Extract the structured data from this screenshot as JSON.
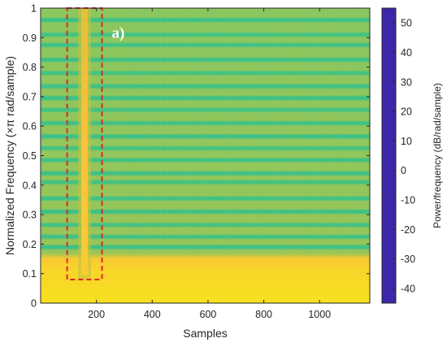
{
  "chart_data": {
    "type": "heatmap",
    "title": "",
    "xlabel": "Samples",
    "ylabel": "Normalized Frequency  (×π rad/sample)",
    "xlim": [
      0,
      1180
    ],
    "ylim": [
      0,
      1
    ],
    "xticks": [
      200,
      400,
      600,
      800,
      1000
    ],
    "yticks": [
      0,
      0.1,
      0.2,
      0.3,
      0.4,
      0.5,
      0.6,
      0.7,
      0.8,
      0.9,
      1
    ],
    "colorbar": {
      "label": "Power/frequency (dB/rad/sample)",
      "range": [
        -45,
        55
      ],
      "ticks": [
        50,
        40,
        30,
        20,
        10,
        0,
        -10,
        -20,
        -30,
        -40
      ],
      "colormap": [
        "#3e26a8",
        "#4743e7",
        "#3a82fd",
        "#1aa6d8",
        "#0fb9b1",
        "#33c28a",
        "#8bc75f",
        "#d2bf3a",
        "#fbc13a",
        "#f7de22",
        "#f9fb0e"
      ]
    },
    "bands": {
      "low_band_power_db": 42,
      "low_band_top_frequency": 0.16,
      "background_power_db": 15,
      "dip_power_db": 4,
      "dip_frequencies": [
        0.19,
        0.225,
        0.265,
        0.31,
        0.355,
        0.41,
        0.44,
        0.485,
        0.525,
        0.565,
        0.61,
        0.655,
        0.695,
        0.735,
        0.78,
        0.825,
        0.875,
        0.91,
        0.96
      ]
    },
    "event": {
      "sample_range": [
        140,
        175
      ],
      "power_db": 35
    },
    "highlight_box": {
      "x": [
        95,
        220
      ],
      "y": [
        0.08,
        1.0
      ],
      "color": "#e0262a"
    },
    "annotation": "a)"
  }
}
